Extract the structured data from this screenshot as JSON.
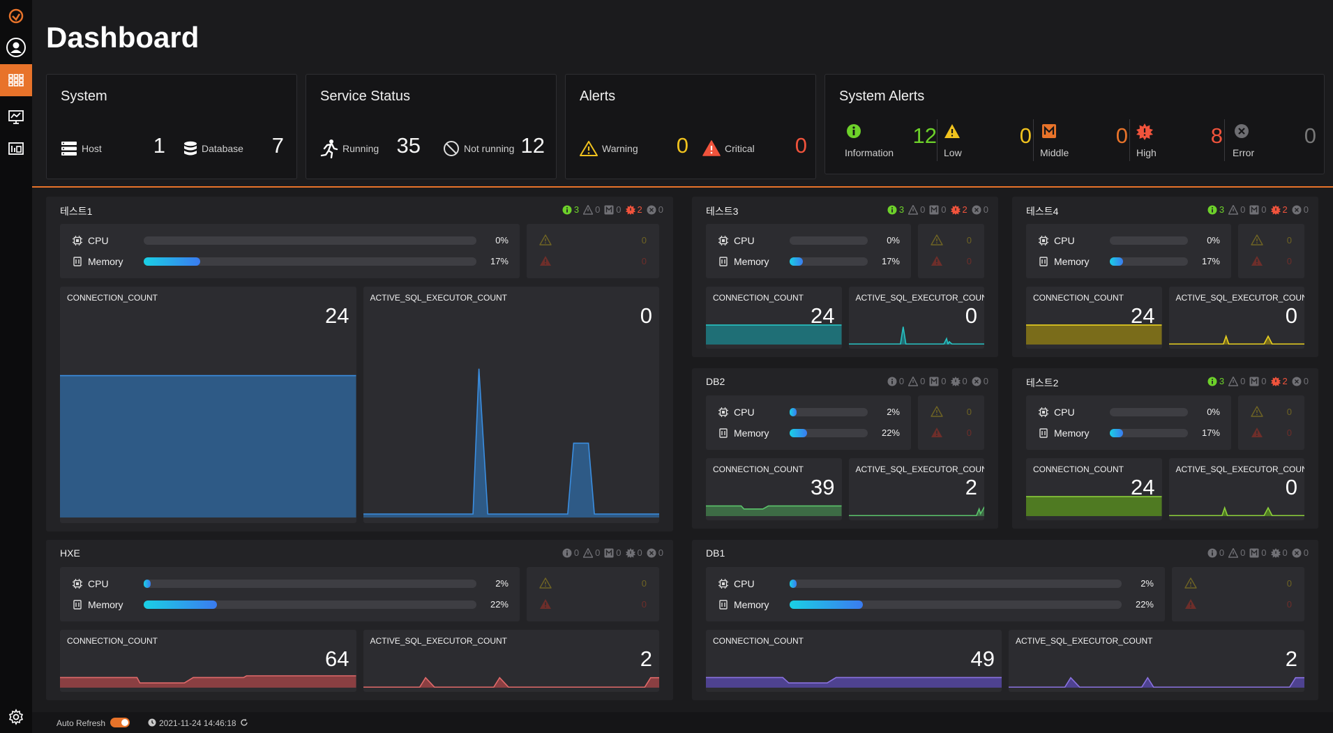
{
  "page": {
    "title": "Dashboard"
  },
  "colors": {
    "accent": "#e8732a",
    "info": "#6dd12a",
    "low": "#f0c21e",
    "middle": "#e8732a",
    "high": "#f0533c",
    "error": "#777777"
  },
  "system": {
    "title": "System",
    "host_label": "Host",
    "host_value": "1",
    "database_label": "Database",
    "database_value": "7"
  },
  "service_status": {
    "title": "Service Status",
    "running_label": "Running",
    "running_value": "35",
    "not_running_label": "Not running",
    "not_running_value": "12"
  },
  "alerts": {
    "title": "Alerts",
    "warning_label": "Warning",
    "warning_value": "0",
    "critical_label": "Critical",
    "critical_value": "0"
  },
  "system_alerts": {
    "title": "System Alerts",
    "items": [
      {
        "label": "Information",
        "value": "12",
        "icon": "info-icon"
      },
      {
        "label": "Low",
        "value": "0",
        "icon": "warning-triangle-icon"
      },
      {
        "label": "Middle",
        "value": "0",
        "icon": "m-badge-icon"
      },
      {
        "label": "High",
        "value": "8",
        "icon": "high-burst-icon"
      },
      {
        "label": "Error",
        "value": "0",
        "icon": "error-x-icon"
      }
    ]
  },
  "panels": [
    {
      "name": "테스트1",
      "badges": [
        "3",
        "0",
        "0",
        "2",
        "0"
      ],
      "cpu_label": "CPU",
      "cpu_pct": "0%",
      "cpu": 0,
      "memory_label": "Memory",
      "mem_pct": "17%",
      "mem": 0.17,
      "warning_value": "0",
      "critical_value": "0",
      "metric1_label": "CONNECTION_COUNT",
      "metric1_value": "24",
      "metric2_label": "ACTIVE_SQL_EXECUTOR_COUNT",
      "metric2_value": "0"
    },
    {
      "name": "테스트3",
      "badges": [
        "3",
        "0",
        "0",
        "2",
        "0"
      ],
      "cpu_label": "CPU",
      "cpu_pct": "0%",
      "cpu": 0,
      "memory_label": "Memory",
      "mem_pct": "17%",
      "mem": 0.17,
      "warning_value": "0",
      "critical_value": "0",
      "metric1_label": "CONNECTION_COUNT",
      "metric1_value": "24",
      "metric2_label": "ACTIVE_SQL_EXECUTOR_COUNT",
      "metric2_value": "0"
    },
    {
      "name": "테스트4",
      "badges": [
        "3",
        "0",
        "0",
        "2",
        "0"
      ],
      "cpu_label": "CPU",
      "cpu_pct": "0%",
      "cpu": 0,
      "memory_label": "Memory",
      "mem_pct": "17%",
      "mem": 0.17,
      "warning_value": "0",
      "critical_value": "0",
      "metric1_label": "CONNECTION_COUNT",
      "metric1_value": "24",
      "metric2_label": "ACTIVE_SQL_EXECUTOR_COUNT",
      "metric2_value": "0"
    },
    {
      "name": "DB2",
      "badges": [
        "0",
        "0",
        "0",
        "0",
        "0"
      ],
      "cpu_label": "CPU",
      "cpu_pct": "2%",
      "cpu": 0.02,
      "memory_label": "Memory",
      "mem_pct": "22%",
      "mem": 0.22,
      "warning_value": "0",
      "critical_value": "0",
      "metric1_label": "CONNECTION_COUNT",
      "metric1_value": "39",
      "metric2_label": "ACTIVE_SQL_EXECUTOR_COUNT",
      "metric2_value": "2"
    },
    {
      "name": "테스트2",
      "badges": [
        "3",
        "0",
        "0",
        "2",
        "0"
      ],
      "cpu_label": "CPU",
      "cpu_pct": "0%",
      "cpu": 0,
      "memory_label": "Memory",
      "mem_pct": "17%",
      "mem": 0.17,
      "warning_value": "0",
      "critical_value": "0",
      "metric1_label": "CONNECTION_COUNT",
      "metric1_value": "24",
      "metric2_label": "ACTIVE_SQL_EXECUTOR_COUNT",
      "metric2_value": "0"
    },
    {
      "name": "HXE",
      "badges": [
        "0",
        "0",
        "0",
        "0",
        "0"
      ],
      "cpu_label": "CPU",
      "cpu_pct": "2%",
      "cpu": 0.02,
      "memory_label": "Memory",
      "mem_pct": "22%",
      "mem": 0.22,
      "warning_value": "0",
      "critical_value": "0",
      "metric1_label": "CONNECTION_COUNT",
      "metric1_value": "64",
      "metric2_label": "ACTIVE_SQL_EXECUTOR_COUNT",
      "metric2_value": "2"
    },
    {
      "name": "DB1",
      "badges": [
        "0",
        "0",
        "0",
        "0",
        "0"
      ],
      "cpu_label": "CPU",
      "cpu_pct": "2%",
      "cpu": 0.02,
      "memory_label": "Memory",
      "mem_pct": "22%",
      "mem": 0.22,
      "warning_value": "0",
      "critical_value": "0",
      "metric1_label": "CONNECTION_COUNT",
      "metric1_value": "49",
      "metric2_label": "ACTIVE_SQL_EXECUTOR_COUNT",
      "metric2_value": "2"
    }
  ],
  "footer": {
    "auto_refresh_label": "Auto Refresh",
    "timestamp": "2021-11-24 14:46:18"
  }
}
